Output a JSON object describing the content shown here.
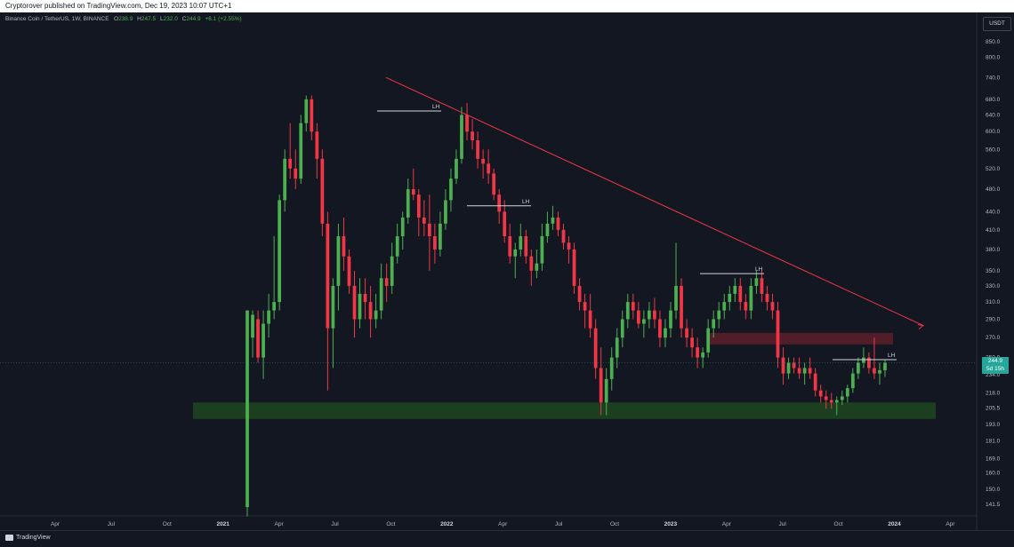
{
  "header": {
    "publisher_line": "Cryptorover published on TradingView.com, Dec 19, 2023 10:07 UTC+1"
  },
  "legend": {
    "symbol": "Binance Coin / TetherUS, 1W, BINANCE",
    "o_label": "O",
    "o_value": "238.9",
    "h_label": "H",
    "h_value": "247.5",
    "l_label": "L",
    "l_value": "232.0",
    "c_label": "C",
    "c_value": "244.9",
    "change": "+6.1 (+2.55%)"
  },
  "currency": "USDT",
  "last_price": {
    "price": "244.9",
    "countdown": "5d 15h"
  },
  "footer": {
    "brand": "TradingView"
  },
  "colors": {
    "up": "#4caf50",
    "down": "#f23645",
    "support": "#1e4620",
    "resistance": "#5c1f2a",
    "trendline": "#f23645"
  },
  "chart_data": {
    "type": "candlestick",
    "scale": "log",
    "ylim": [
      138,
      900
    ],
    "y_ticks": [
      "850.0",
      "800.0",
      "740.0",
      "680.0",
      "640.0",
      "600.0",
      "560.0",
      "520.0",
      "480.0",
      "440.0",
      "410.0",
      "380.0",
      "350.0",
      "330.0",
      "310.0",
      "290.0",
      "270.0",
      "250.0",
      "234.0",
      "218.0",
      "205.5",
      "193.0",
      "181.0",
      "169.0",
      "160.0",
      "150.0",
      "141.5"
    ],
    "x_ticks": [
      {
        "label": "Apr",
        "bold": false
      },
      {
        "label": "Jul",
        "bold": false
      },
      {
        "label": "Oct",
        "bold": false
      },
      {
        "label": "2021",
        "bold": true
      },
      {
        "label": "Apr",
        "bold": false
      },
      {
        "label": "Jul",
        "bold": false
      },
      {
        "label": "Oct",
        "bold": false
      },
      {
        "label": "2022",
        "bold": true
      },
      {
        "label": "Apr",
        "bold": false
      },
      {
        "label": "Jul",
        "bold": false
      },
      {
        "label": "Oct",
        "bold": false
      },
      {
        "label": "2023",
        "bold": true
      },
      {
        "label": "Apr",
        "bold": false
      },
      {
        "label": "Jul",
        "bold": false
      },
      {
        "label": "Oct",
        "bold": false
      },
      {
        "label": "2024",
        "bold": true
      },
      {
        "label": "Apr",
        "bold": false
      }
    ],
    "candles": [
      [
        140,
        300,
        135,
        300
      ],
      [
        270,
        300,
        250,
        295
      ],
      [
        290,
        300,
        245,
        250
      ],
      [
        250,
        300,
        230,
        285
      ],
      [
        285,
        320,
        270,
        300
      ],
      [
        300,
        400,
        290,
        310
      ],
      [
        310,
        470,
        300,
        460
      ],
      [
        460,
        560,
        440,
        540
      ],
      [
        540,
        620,
        500,
        520
      ],
      [
        520,
        560,
        480,
        500
      ],
      [
        500,
        640,
        490,
        620
      ],
      [
        620,
        690,
        600,
        680
      ],
      [
        680,
        690,
        580,
        600
      ],
      [
        600,
        620,
        500,
        540
      ],
      [
        540,
        560,
        400,
        420
      ],
      [
        420,
        440,
        220,
        280
      ],
      [
        280,
        340,
        240,
        330
      ],
      [
        330,
        420,
        300,
        400
      ],
      [
        400,
        430,
        350,
        370
      ],
      [
        370,
        380,
        320,
        330
      ],
      [
        330,
        350,
        270,
        290
      ],
      [
        290,
        340,
        280,
        320
      ],
      [
        320,
        340,
        290,
        310
      ],
      [
        310,
        330,
        270,
        290
      ],
      [
        290,
        320,
        280,
        300
      ],
      [
        300,
        360,
        290,
        340
      ],
      [
        340,
        360,
        310,
        330
      ],
      [
        330,
        390,
        320,
        370
      ],
      [
        370,
        420,
        360,
        400
      ],
      [
        400,
        440,
        380,
        430
      ],
      [
        430,
        500,
        420,
        480
      ],
      [
        480,
        520,
        460,
        470
      ],
      [
        470,
        480,
        400,
        430
      ],
      [
        430,
        460,
        400,
        420
      ],
      [
        420,
        470,
        350,
        400
      ],
      [
        400,
        420,
        360,
        380
      ],
      [
        380,
        440,
        370,
        420
      ],
      [
        420,
        480,
        410,
        460
      ],
      [
        460,
        520,
        440,
        500
      ],
      [
        500,
        560,
        490,
        540
      ],
      [
        540,
        660,
        530,
        640
      ],
      [
        640,
        670,
        580,
        600
      ],
      [
        600,
        630,
        560,
        580
      ],
      [
        580,
        600,
        520,
        540
      ],
      [
        540,
        560,
        500,
        530
      ],
      [
        530,
        560,
        490,
        510
      ],
      [
        510,
        520,
        460,
        470
      ],
      [
        470,
        480,
        420,
        440
      ],
      [
        440,
        460,
        390,
        400
      ],
      [
        400,
        420,
        360,
        370
      ],
      [
        370,
        390,
        340,
        380
      ],
      [
        380,
        420,
        370,
        400
      ],
      [
        400,
        410,
        360,
        370
      ],
      [
        370,
        380,
        330,
        350
      ],
      [
        350,
        380,
        340,
        360
      ],
      [
        360,
        420,
        350,
        400
      ],
      [
        400,
        440,
        390,
        420
      ],
      [
        420,
        450,
        410,
        430
      ],
      [
        430,
        440,
        400,
        410
      ],
      [
        410,
        420,
        380,
        390
      ],
      [
        390,
        400,
        360,
        380
      ],
      [
        380,
        390,
        320,
        330
      ],
      [
        330,
        340,
        300,
        310
      ],
      [
        310,
        320,
        280,
        300
      ],
      [
        300,
        320,
        270,
        280
      ],
      [
        280,
        290,
        230,
        240
      ],
      [
        240,
        260,
        200,
        210
      ],
      [
        210,
        240,
        200,
        230
      ],
      [
        230,
        260,
        220,
        250
      ],
      [
        250,
        280,
        240,
        270
      ],
      [
        270,
        300,
        260,
        290
      ],
      [
        290,
        320,
        280,
        310
      ],
      [
        310,
        320,
        290,
        300
      ],
      [
        300,
        310,
        280,
        285
      ],
      [
        285,
        300,
        270,
        290
      ],
      [
        290,
        310,
        280,
        300
      ],
      [
        300,
        315,
        280,
        290
      ],
      [
        290,
        300,
        260,
        270
      ],
      [
        270,
        290,
        260,
        280
      ],
      [
        280,
        310,
        270,
        300
      ],
      [
        300,
        390,
        290,
        330
      ],
      [
        330,
        340,
        270,
        280
      ],
      [
        280,
        290,
        260,
        270
      ],
      [
        270,
        280,
        250,
        260
      ],
      [
        260,
        270,
        240,
        250
      ],
      [
        250,
        260,
        240,
        255
      ],
      [
        255,
        290,
        250,
        280
      ],
      [
        280,
        300,
        270,
        290
      ],
      [
        290,
        310,
        280,
        300
      ],
      [
        300,
        320,
        290,
        310
      ],
      [
        310,
        330,
        300,
        320
      ],
      [
        320,
        340,
        310,
        330
      ],
      [
        330,
        340,
        300,
        310
      ],
      [
        310,
        320,
        290,
        300
      ],
      [
        300,
        340,
        290,
        330
      ],
      [
        330,
        350,
        320,
        340
      ],
      [
        340,
        350,
        310,
        320
      ],
      [
        320,
        330,
        300,
        310
      ],
      [
        310,
        320,
        290,
        300
      ],
      [
        300,
        310,
        240,
        250
      ],
      [
        250,
        260,
        225,
        235
      ],
      [
        235,
        250,
        230,
        245
      ],
      [
        245,
        250,
        235,
        240
      ],
      [
        240,
        250,
        230,
        235
      ],
      [
        235,
        245,
        225,
        240
      ],
      [
        240,
        250,
        230,
        235
      ],
      [
        235,
        240,
        215,
        220
      ],
      [
        220,
        225,
        210,
        215
      ],
      [
        215,
        220,
        205,
        212
      ],
      [
        212,
        218,
        205,
        210
      ],
      [
        210,
        215,
        200,
        212
      ],
      [
        212,
        220,
        208,
        215
      ],
      [
        215,
        225,
        210,
        222
      ],
      [
        222,
        240,
        218,
        235
      ],
      [
        235,
        250,
        230,
        245
      ],
      [
        245,
        260,
        240,
        250
      ],
      [
        250,
        255,
        235,
        240
      ],
      [
        240,
        270,
        230,
        235
      ],
      [
        235,
        245,
        225,
        238
      ],
      [
        238,
        248,
        232,
        245
      ]
    ],
    "zones": [
      {
        "name": "support",
        "from": 197,
        "to": 210
      },
      {
        "name": "resistance",
        "from": 263,
        "to": 275
      }
    ],
    "lh_levels": [
      {
        "label": "LH",
        "price": 650
      },
      {
        "label": "LH",
        "price": 450
      },
      {
        "label": "LH",
        "price": 346
      },
      {
        "label": "LH",
        "price": 248
      }
    ],
    "trendline": {
      "from_price": 740,
      "to_price": 283
    }
  }
}
